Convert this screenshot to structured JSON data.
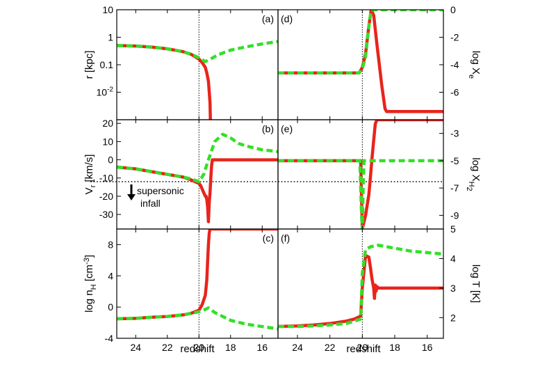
{
  "chart_data": {
    "type": "line",
    "xlabel": "redshift",
    "xlim": [
      25.2,
      15.0
    ],
    "xticks": [
      24,
      22,
      20,
      18,
      16
    ],
    "reference_x": 20,
    "series_styles": [
      {
        "color": "#e8241c",
        "dash": "solid"
      },
      {
        "color": "#33e027",
        "dash": "dashed"
      }
    ],
    "panels": [
      {
        "id": "a",
        "tag": "(a)",
        "column": 0,
        "row": 0,
        "ylabel": "r [kpc]",
        "ylabel_side": "left",
        "y_scale": "log",
        "ylim": [
          0.001,
          10
        ],
        "yticks": [
          {
            "value": 10,
            "label": "10"
          },
          {
            "value": 1,
            "label": "1"
          },
          {
            "value": 0.1,
            "label": "0.1"
          },
          {
            "value": 0.01,
            "label": "10-2"
          }
        ],
        "series": [
          {
            "x": [
              25.2,
              24,
              23,
              22,
              21,
              20.5,
              20,
              19.8,
              19.6,
              19.5,
              19.4,
              19.35,
              19.3,
              19.28
            ],
            "y": [
              0.5,
              0.48,
              0.44,
              0.38,
              0.3,
              0.24,
              0.16,
              0.12,
              0.08,
              0.05,
              0.025,
              0.01,
              0.004,
              0.001
            ]
          },
          {
            "x": [
              25.2,
              24,
              23,
              22,
              21,
              20.5,
              20,
              19.6,
              19.2,
              18.8,
              18,
              17,
              16,
              15
            ],
            "y": [
              0.5,
              0.48,
              0.44,
              0.38,
              0.3,
              0.24,
              0.18,
              0.13,
              0.17,
              0.23,
              0.34,
              0.45,
              0.57,
              0.7
            ]
          }
        ]
      },
      {
        "id": "d",
        "tag": "(d)",
        "column": 1,
        "row": 0,
        "ylabel": "log Xe",
        "ylabel_side": "right",
        "y_scale": "linear",
        "ylim": [
          -8,
          0
        ],
        "yticks": [
          {
            "value": 0,
            "label": "0"
          },
          {
            "value": -2,
            "label": "-2"
          },
          {
            "value": -4,
            "label": "-4"
          },
          {
            "value": -6,
            "label": "-6"
          }
        ],
        "series": [
          {
            "x": [
              25.2,
              20.2,
              20,
              19.8,
              19.6,
              19.45,
              19.3,
              19.1,
              18.8,
              18.6,
              18.5,
              15
            ],
            "y": [
              -4.6,
              -4.6,
              -4.2,
              -3.2,
              -1.2,
              0,
              -0.4,
              -2.5,
              -5.5,
              -7.2,
              -7.4,
              -7.4
            ]
          },
          {
            "x": [
              25.2,
              20.2,
              20,
              19.8,
              19.6,
              19.45,
              15
            ],
            "y": [
              -4.6,
              -4.6,
              -4.3,
              -3.4,
              -1.2,
              0,
              0
            ]
          }
        ]
      },
      {
        "id": "b",
        "tag": "(b)",
        "column": 0,
        "row": 1,
        "ylabel": "Vr [km/s]",
        "ylabel_side": "left",
        "y_scale": "linear",
        "ylim": [
          -38,
          22
        ],
        "yticks": [
          {
            "value": 20,
            "label": "20"
          },
          {
            "value": 10,
            "label": "10"
          },
          {
            "value": 0,
            "label": "0"
          },
          {
            "value": -10,
            "label": "-10"
          },
          {
            "value": -20,
            "label": "-20"
          },
          {
            "value": -30,
            "label": "-30"
          }
        ],
        "reference_y": -12,
        "annotation": [
          "supersonic",
          "infall"
        ],
        "series": [
          {
            "x": [
              25.2,
              24,
              23,
              22,
              21,
              20.5,
              20,
              19.9,
              19.8,
              19.7,
              19.6,
              19.55,
              19.5,
              19.45,
              19.4,
              19.35,
              19.3,
              19.25,
              19.2,
              19.15,
              19.1,
              15
            ],
            "y": [
              -4,
              -5,
              -6.5,
              -8,
              -9.5,
              -11,
              -13,
              -14,
              -16,
              -18,
              -20,
              -20,
              -22,
              -26,
              -34,
              -23,
              -18,
              -10,
              -3,
              0,
              0,
              0
            ]
          },
          {
            "x": [
              25.2,
              24,
              23,
              22,
              21,
              20.5,
              20,
              19.7,
              19.4,
              19,
              18.5,
              18,
              17.5,
              17,
              16,
              15
            ],
            "y": [
              -4,
              -5,
              -6.5,
              -8,
              -9.5,
              -10.5,
              -12,
              -8,
              0,
              10,
              14,
              12,
              9,
              7.5,
              5.5,
              4.5
            ]
          }
        ]
      },
      {
        "id": "e",
        "tag": "(e)",
        "column": 1,
        "row": 1,
        "ylabel": "log XH2",
        "ylabel_side": "right",
        "y_scale": "linear",
        "ylim": [
          -10,
          -2
        ],
        "yticks": [
          {
            "value": -3,
            "label": "-3"
          },
          {
            "value": -5,
            "label": "-5"
          },
          {
            "value": -7,
            "label": "-7"
          },
          {
            "value": -9,
            "label": "-9"
          }
        ],
        "series": [
          {
            "x": [
              25.2,
              20.1,
              20,
              19.8,
              19.6,
              19.5,
              19.4,
              19.3,
              19.2,
              19.1,
              15
            ],
            "y": [
              -5,
              -5,
              -10,
              -9,
              -7.5,
              -6.2,
              -4.8,
              -3.5,
              -2.3,
              -2,
              -2
            ]
          },
          {
            "x": [
              25.2,
              20.15,
              20.1,
              20.05,
              20,
              19.95,
              19.9,
              15
            ],
            "y": [
              -5,
              -5,
              -7,
              -9,
              -10,
              -7,
              -5,
              -5
            ]
          }
        ]
      },
      {
        "id": "c",
        "tag": "(c)",
        "column": 0,
        "row": 2,
        "ylabel": "log nH [cm-3]",
        "ylabel_side": "left",
        "y_scale": "linear",
        "ylim": [
          -4,
          10
        ],
        "yticks": [
          {
            "value": 8,
            "label": "8"
          },
          {
            "value": 4,
            "label": "4"
          },
          {
            "value": 0,
            "label": "0"
          },
          {
            "value": -4,
            "label": "-4"
          }
        ],
        "series": [
          {
            "x": [
              25.2,
              24,
              23,
              22,
              21,
              20.5,
              20,
              19.8,
              19.6,
              19.5,
              19.45,
              19.4,
              19.35,
              19.3,
              19.2,
              15
            ],
            "y": [
              -1.5,
              -1.45,
              -1.3,
              -1.2,
              -1,
              -0.8,
              -0.4,
              0.3,
              1.5,
              3.5,
              6,
              8,
              9.5,
              10,
              10,
              10
            ]
          },
          {
            "x": [
              25.2,
              24,
              23,
              22,
              21,
              20.5,
              20,
              19.7,
              19.4,
              19,
              18.5,
              18,
              17,
              16,
              15
            ],
            "y": [
              -1.5,
              -1.45,
              -1.3,
              -1.2,
              -1,
              -0.8,
              -0.6,
              -0.4,
              -0.1,
              -0.7,
              -1.2,
              -1.7,
              -2.2,
              -2.5,
              -2.8
            ]
          }
        ]
      },
      {
        "id": "f",
        "tag": "(f)",
        "column": 1,
        "row": 2,
        "ylabel": "log T [K]",
        "ylabel_side": "right",
        "y_scale": "linear",
        "ylim": [
          1.3,
          5
        ],
        "yticks": [
          {
            "value": 5,
            "label": "5"
          },
          {
            "value": 4,
            "label": "4"
          },
          {
            "value": 3,
            "label": "3"
          },
          {
            "value": 2,
            "label": "2"
          }
        ],
        "series": [
          {
            "x": [
              25.2,
              24,
              23,
              22,
              21,
              20.5,
              20.1,
              20,
              19.8,
              19.6,
              19.5,
              19.4,
              19.3,
              19.25,
              19.2,
              19.15,
              19.1,
              19.0,
              15
            ],
            "y": [
              1.7,
              1.72,
              1.75,
              1.8,
              1.88,
              1.95,
              2.05,
              3.0,
              4.1,
              4.05,
              3.7,
              3.3,
              3.0,
              2.65,
              3.1,
              2.9,
              3.05,
              3.0,
              3.0
            ]
          },
          {
            "x": [
              25.2,
              24,
              23,
              22,
              21,
              20.5,
              20.1,
              20,
              19.8,
              19.5,
              19,
              18.5,
              18,
              17,
              16,
              15
            ],
            "y": [
              1.7,
              1.7,
              1.72,
              1.75,
              1.8,
              1.88,
              1.95,
              3.5,
              4.3,
              4.4,
              4.45,
              4.4,
              4.35,
              4.25,
              4.2,
              4.15
            ]
          }
        ]
      }
    ]
  }
}
